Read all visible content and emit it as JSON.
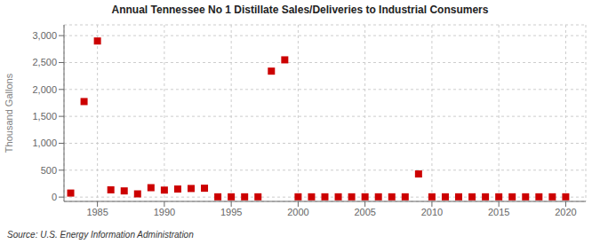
{
  "chart_data": {
    "type": "scatter",
    "title": "Annual Tennessee No 1 Distillate Sales/Deliveries to Industrial Consumers",
    "ylabel": "Thousand Gallons",
    "annotations": [
      "Source: U.S. Energy Information Administration"
    ],
    "x": [
      1983,
      1984,
      1985,
      1986,
      1987,
      1988,
      1989,
      1990,
      1991,
      1992,
      1993,
      1994,
      1995,
      1996,
      1997,
      1998,
      1999,
      2000,
      2001,
      2002,
      2003,
      2004,
      2005,
      2006,
      2007,
      2008,
      2009,
      2010,
      2011,
      2012,
      2013,
      2014,
      2015,
      2016,
      2017,
      2018,
      2019,
      2020
    ],
    "values": [
      75,
      1775,
      2900,
      135,
      115,
      60,
      175,
      130,
      150,
      160,
      165,
      5,
      5,
      5,
      5,
      2340,
      2550,
      5,
      5,
      5,
      5,
      5,
      5,
      5,
      5,
      5,
      430,
      5,
      5,
      5,
      5,
      5,
      5,
      5,
      5,
      5,
      5,
      5
    ],
    "color": "#cc0000",
    "marker": "square",
    "xlim": [
      1982.5,
      2021.5
    ],
    "ylim": [
      -80,
      3200
    ],
    "xticks": [
      1985,
      1990,
      1995,
      2000,
      2005,
      2010,
      2015,
      2020
    ],
    "yticks": [
      0,
      500,
      {
        "value": 1000,
        "label": "1,000"
      },
      {
        "value": 1500,
        "label": "1,500"
      },
      {
        "value": 2000,
        "label": "2,000"
      },
      {
        "value": 2500,
        "label": "2,500"
      },
      {
        "value": 3000,
        "label": "3,000"
      }
    ],
    "grid": true
  }
}
